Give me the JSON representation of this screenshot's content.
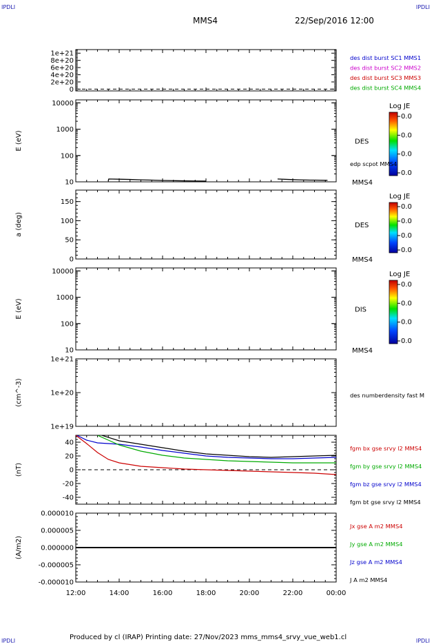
{
  "header": {
    "corner_left": "IPDLI",
    "corner_right": "IPDLI",
    "title": "MMS4",
    "date": "22/Sep/2016 12:00",
    "corner_bottom_left": "IPDLI",
    "corner_bottom_right": "IPDLI"
  },
  "footer": "Produced by cl (IRAP)   Printing date: 27/Nov/2023   mms_mms4_srvy_vue_web1.cl",
  "chart_data": [
    {
      "id": "p1",
      "type": "line",
      "ylim": [
        -50000000000000000000,
        1100000000000000000000
      ],
      "yticks": [
        0,
        2e+20,
        4e+20,
        6e+20,
        8e+20,
        1e+21
      ],
      "yticklabels": [
        "0",
        "2e+20",
        "4e+20",
        "6e+20",
        "8e+20",
        "1e+21"
      ],
      "dashed_zero": true,
      "legend": [
        {
          "text": "des dist burst SC1 MMS1",
          "color": "#0000cc"
        },
        {
          "text": "des dist burst SC2 MMS2",
          "color": "#cc00cc"
        },
        {
          "text": "des dist burst SC3 MMS3",
          "color": "#cc0000"
        },
        {
          "text": "des dist burst SC4 MMS4",
          "color": "#00aa00"
        }
      ],
      "series": []
    },
    {
      "id": "p2",
      "type": "line",
      "scale": "log",
      "ylabel": "E (eV)",
      "ylim": [
        10,
        13000
      ],
      "yticks": [
        10,
        100,
        1000,
        10000
      ],
      "yticklabels": [
        "10",
        "100",
        "1000",
        "10000"
      ],
      "label_right": "DES",
      "label_bottom": "MMS4",
      "legend": [
        {
          "text": "edp scpot MMS4",
          "color": "#000000"
        }
      ],
      "colorbar": {
        "title": "Log JE",
        "ticks": [
          "0.0",
          "0.0",
          "0.0",
          "0.0"
        ]
      },
      "series": [
        {
          "color": "#000000",
          "segments": [
            [
              [
                13.5,
                11
              ],
              [
                13.52,
                12.8
              ],
              [
                14.0,
                12.6
              ],
              [
                14.5,
                12.3
              ],
              [
                15.0,
                11.9
              ],
              [
                15.5,
                11.6
              ],
              [
                16.0,
                11.3
              ],
              [
                16.5,
                11.1
              ],
              [
                17.0,
                10.9
              ],
              [
                17.5,
                10.8
              ],
              [
                18.0,
                10.7
              ]
            ],
            [
              [
                21.3,
                12.8
              ],
              [
                21.8,
                12.3
              ],
              [
                22.3,
                11.9
              ],
              [
                22.8,
                11.6
              ],
              [
                23.0,
                11.6
              ],
              [
                23.6,
                11.4
              ]
            ]
          ]
        }
      ]
    },
    {
      "id": "p3",
      "type": "heatmap",
      "ylabel": "a (deg)",
      "ylim": [
        0,
        180
      ],
      "yticks": [
        0,
        50,
        100,
        150
      ],
      "yticklabels": [
        "0",
        "50",
        "100",
        "150"
      ],
      "label_right": "DES",
      "label_bottom": "MMS4",
      "colorbar": {
        "title": "Log JE",
        "ticks": [
          "0.0",
          "0.0",
          "0.0",
          "0.0"
        ]
      }
    },
    {
      "id": "p4",
      "type": "heatmap",
      "scale": "log",
      "ylabel": "E (eV)",
      "ylim": [
        10,
        13000
      ],
      "yticks": [
        10,
        100,
        1000,
        10000
      ],
      "yticklabels": [
        "10",
        "100",
        "1000",
        "10000"
      ],
      "label_right": "DIS",
      "label_bottom": "MMS4",
      "colorbar": {
        "title": "Log JE",
        "ticks": [
          "0.0",
          "0.0",
          "0.0",
          "0.0"
        ]
      }
    },
    {
      "id": "p5",
      "type": "line",
      "scale": "log",
      "ylabel": "(cm^-3)",
      "ylim": [
        1e+19,
        1e+21
      ],
      "yticks": [
        1e+19,
        1e+20,
        1e+21
      ],
      "yticklabels": [
        "1e+19",
        "1e+20",
        "1e+21"
      ],
      "legend": [
        {
          "text": "des numberdensity fast M",
          "color": "#000000"
        }
      ],
      "series": []
    },
    {
      "id": "p6",
      "type": "line",
      "ylabel": "(nT)",
      "ylim": [
        -50,
        50
      ],
      "yticks": [
        -40,
        -20,
        0,
        20,
        40
      ],
      "yticklabels": [
        "-40",
        "-20",
        "0",
        "20",
        "40"
      ],
      "dashed_zero": true,
      "legend": [
        {
          "text": "fgm bx gse srvy l2 MMS4",
          "color": "#cc0000"
        },
        {
          "text": "fgm by gse srvy l2 MMS4",
          "color": "#00aa00"
        },
        {
          "text": "fgm bz gse srvy l2 MMS4",
          "color": "#0000cc"
        },
        {
          "text": "fgm bt gse srvy l2 MMS4",
          "color": "#000000"
        }
      ],
      "series": [
        {
          "name": "fgm bt gse srvy l2 MMS4",
          "color": "#000000",
          "x": [
            13.2,
            14,
            15,
            16,
            17,
            18,
            19,
            20,
            21,
            22,
            23,
            24
          ],
          "y": [
            50,
            42,
            37,
            32,
            27,
            23,
            21,
            19,
            18,
            19,
            20,
            21
          ]
        },
        {
          "name": "fgm bz gse srvy l2 MMS4",
          "color": "#0000cc",
          "x": [
            12.05,
            12.5,
            13,
            14,
            15,
            16,
            17,
            18,
            19,
            20,
            21,
            22,
            23,
            24
          ],
          "y": [
            50,
            43,
            39,
            37,
            33,
            28,
            24,
            20,
            18,
            17,
            16,
            16,
            17,
            18
          ]
        },
        {
          "name": "fgm by gse srvy l2 MMS4",
          "color": "#00aa00",
          "x": [
            13.0,
            13.5,
            14,
            15,
            16,
            17,
            18,
            19,
            20,
            21,
            22,
            23,
            24
          ],
          "y": [
            50,
            43,
            36,
            27,
            21,
            17,
            15,
            13,
            12,
            11,
            10,
            10,
            10
          ]
        },
        {
          "name": "fgm bx gse srvy l2 MMS4",
          "color": "#cc0000",
          "x": [
            12.0,
            12.5,
            13,
            13.5,
            14,
            15,
            16,
            17,
            18,
            19,
            20,
            21,
            22,
            23,
            24
          ],
          "y": [
            50,
            38,
            25,
            15,
            10,
            5,
            3,
            1,
            0,
            -1,
            -2,
            -3,
            -4,
            -5,
            -7
          ]
        }
      ]
    },
    {
      "id": "p7",
      "type": "line",
      "ylabel": "(A/m2)",
      "ylim": [
        -1e-05,
        1e-05
      ],
      "yticks": [
        -1e-05,
        -5e-06,
        0,
        5e-06,
        1e-05
      ],
      "yticklabels": [
        "-0.000010",
        "-0.000005",
        "0.000000",
        "0.000005",
        "0.000010"
      ],
      "legend": [
        {
          "text": "Jx gse A m2 MMS4",
          "color": "#cc0000"
        },
        {
          "text": "Jy gse A m2 MMS4",
          "color": "#00aa00"
        },
        {
          "text": "Jz gse A m2 MMS4",
          "color": "#0000cc"
        },
        {
          "text": "J A m2 MMS4",
          "color": "#000000"
        }
      ],
      "series": [
        {
          "name": "Jz gse A m2 MMS4",
          "color": "#0000cc",
          "x": [
            12,
            24
          ],
          "y": [
            0,
            0
          ]
        },
        {
          "name": "J A m2 MMS4",
          "color": "#000000",
          "x": [
            12,
            24
          ],
          "y": [
            0,
            0
          ]
        }
      ]
    }
  ],
  "xaxis": {
    "range": [
      12,
      24
    ],
    "ticks": [
      12,
      14,
      16,
      18,
      20,
      22,
      24
    ],
    "ticklabels": [
      "12:00",
      "14:00",
      "16:00",
      "18:00",
      "20:00",
      "22:00",
      "00:00"
    ]
  }
}
